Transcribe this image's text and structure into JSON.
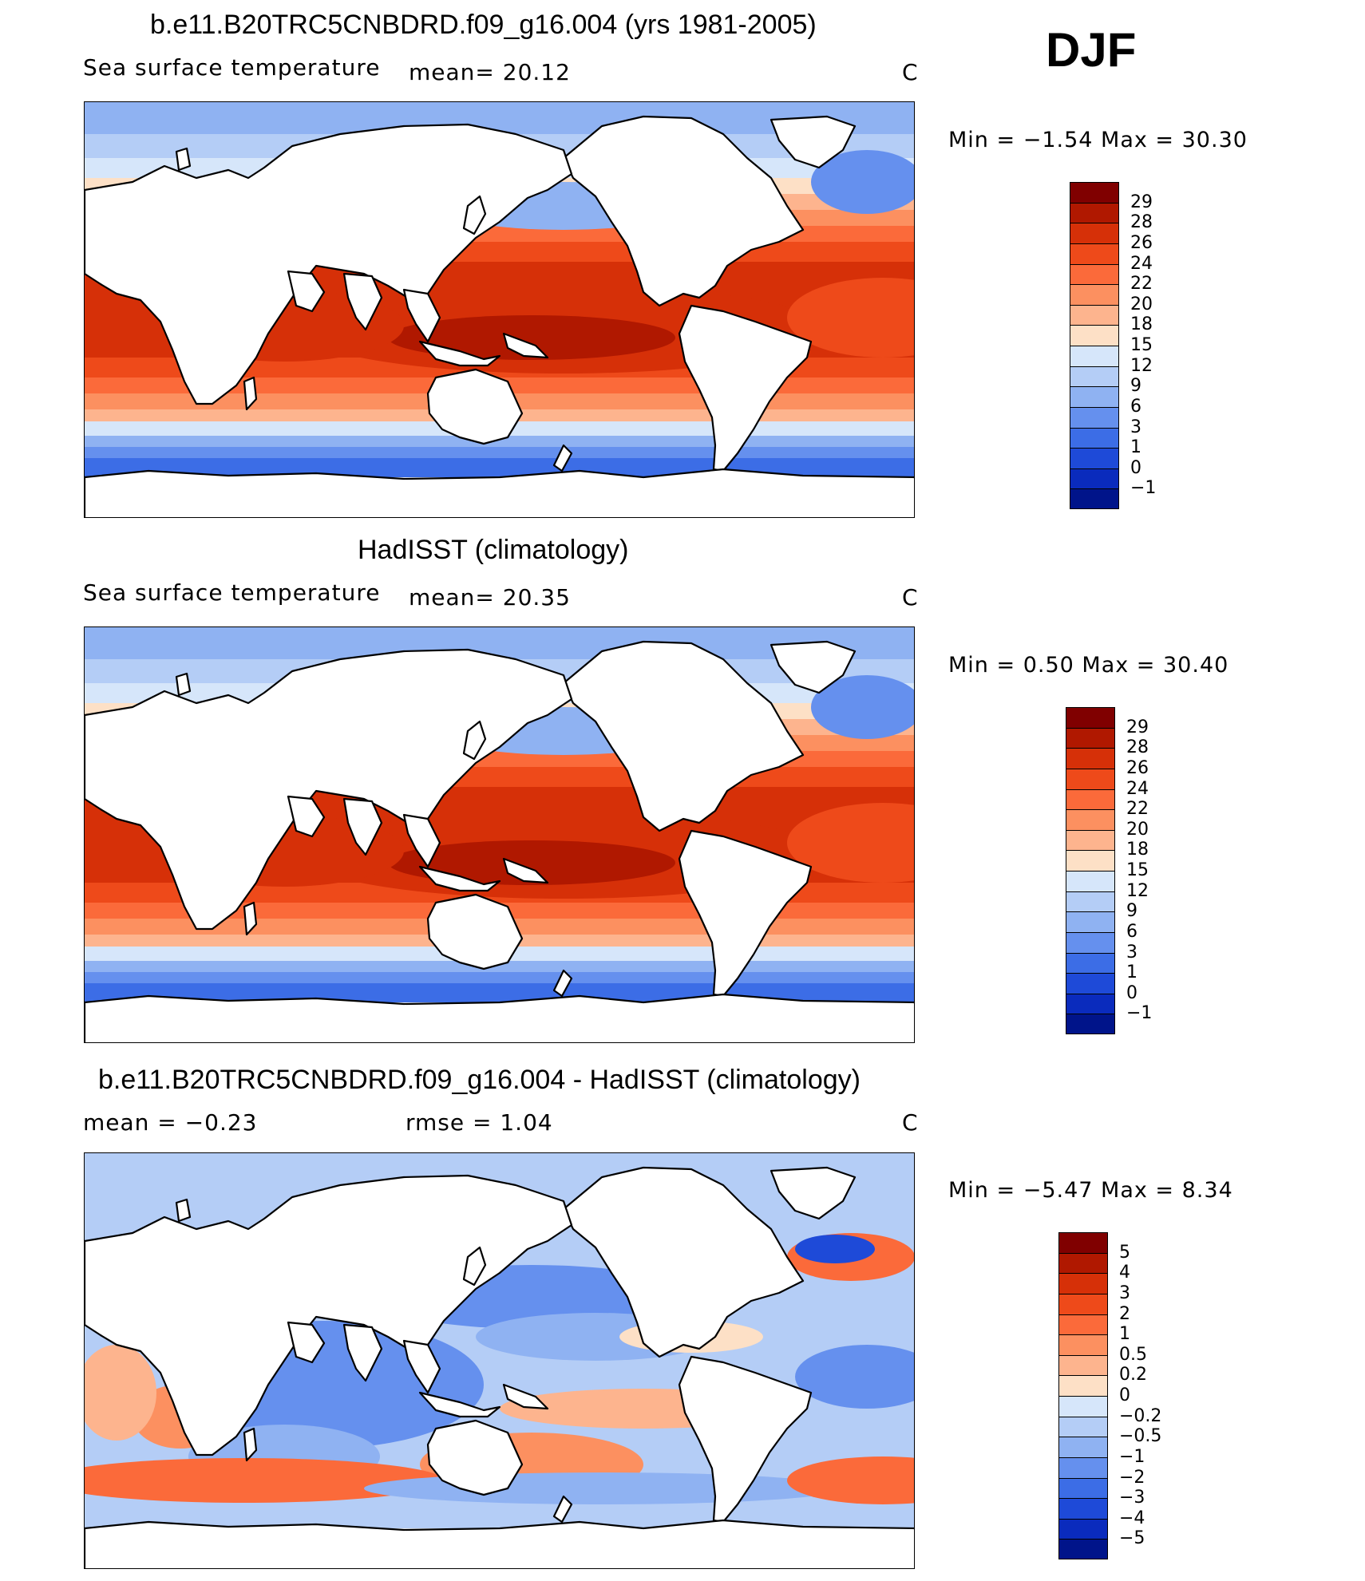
{
  "season": "DJF",
  "panels": [
    {
      "title": "b.e11.B20TRC5CNBDRD.f09_g16.004 (yrs 1981-2005)",
      "left_label": "Sea surface temperature",
      "mid_label": "mean=   20.12",
      "units": "C",
      "minmax": "Min =   −1.54  Max =   30.30"
    },
    {
      "title": "HadISST (climatology)",
      "left_label": "Sea surface temperature",
      "mid_label": "mean=   20.35",
      "units": "C",
      "minmax": "Min =    0.50  Max =   30.40"
    },
    {
      "title": "b.e11.B20TRC5CNBDRD.f09_g16.004 - HadISST (climatology)",
      "left_label": "mean =   −0.23",
      "mid_label": "rmse =    1.04",
      "units": "C",
      "minmax": "Min =   −5.47  Max =    8.34"
    }
  ],
  "chart_data": [
    {
      "type": "heatmap",
      "title": "b.e11.B20TRC5CNBDRD.f09_g16.004 (yrs 1981-2005)",
      "variable": "Sea surface temperature",
      "units": "C",
      "mean": 20.12,
      "min": -1.54,
      "max": 30.3,
      "levels": [
        "29",
        "28",
        "26",
        "24",
        "22",
        "20",
        "18",
        "15",
        "12",
        "9",
        "6",
        "3",
        "1",
        "0",
        "−1"
      ],
      "colors": [
        "#800000",
        "#b01800",
        "#d63008",
        "#ee4a1a",
        "#fb6a3a",
        "#fc9060",
        "#fdb48e",
        "#fde0c6",
        "#d6e6fa",
        "#b4cdf6",
        "#8fb2f2",
        "#6590ee",
        "#3c6de6",
        "#1e4ad8",
        "#0a2bbd",
        "#00148a"
      ]
    },
    {
      "type": "heatmap",
      "title": "HadISST (climatology)",
      "variable": "Sea surface temperature",
      "units": "C",
      "mean": 20.35,
      "min": 0.5,
      "max": 30.4,
      "levels": [
        "29",
        "28",
        "26",
        "24",
        "22",
        "20",
        "18",
        "15",
        "12",
        "9",
        "6",
        "3",
        "1",
        "0",
        "−1"
      ],
      "colors": [
        "#800000",
        "#b01800",
        "#d63008",
        "#ee4a1a",
        "#fb6a3a",
        "#fc9060",
        "#fdb48e",
        "#fde0c6",
        "#d6e6fa",
        "#b4cdf6",
        "#8fb2f2",
        "#6590ee",
        "#3c6de6",
        "#1e4ad8",
        "#0a2bbd",
        "#00148a"
      ]
    },
    {
      "type": "heatmap",
      "title": "b.e11.B20TRC5CNBDRD.f09_g16.004 - HadISST (climatology)",
      "units": "C",
      "mean": -0.23,
      "rmse": 1.04,
      "min": -5.47,
      "max": 8.34,
      "levels": [
        "5",
        "4",
        "3",
        "2",
        "1",
        "0.5",
        "0.2",
        "0",
        "−0.2",
        "−0.5",
        "−1",
        "−2",
        "−3",
        "−4",
        "−5"
      ],
      "colors": [
        "#800000",
        "#b01800",
        "#d63008",
        "#ee4a1a",
        "#fb6a3a",
        "#fc9060",
        "#fdb48e",
        "#fde0c6",
        "#d6e6fa",
        "#b4cdf6",
        "#8fb2f2",
        "#6590ee",
        "#3c6de6",
        "#1e4ad8",
        "#0a2bbd",
        "#00148a"
      ]
    }
  ]
}
